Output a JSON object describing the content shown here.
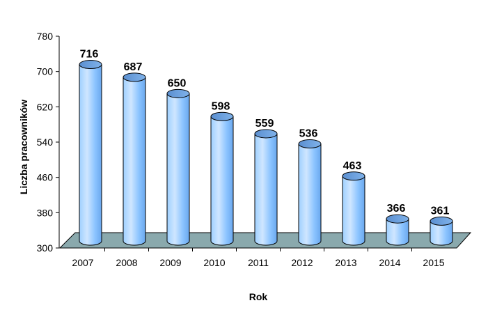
{
  "chart_data": {
    "type": "bar",
    "style": "3d-cylinder",
    "title": "",
    "xlabel": "Rok",
    "ylabel": "Liczba pracowników",
    "ylim": [
      300,
      780
    ],
    "yticks": [
      300,
      380,
      460,
      540,
      620,
      700,
      780
    ],
    "categories": [
      "2007",
      "2008",
      "2009",
      "2010",
      "2011",
      "2012",
      "2013",
      "2014",
      "2015"
    ],
    "values": [
      716,
      687,
      650,
      598,
      559,
      536,
      463,
      366,
      361
    ],
    "grid": false,
    "legend": "none",
    "colors": {
      "cylinder_fill": "#99ccff",
      "cylinder_stroke": "#000000",
      "floor": "#8aa9ad"
    }
  }
}
